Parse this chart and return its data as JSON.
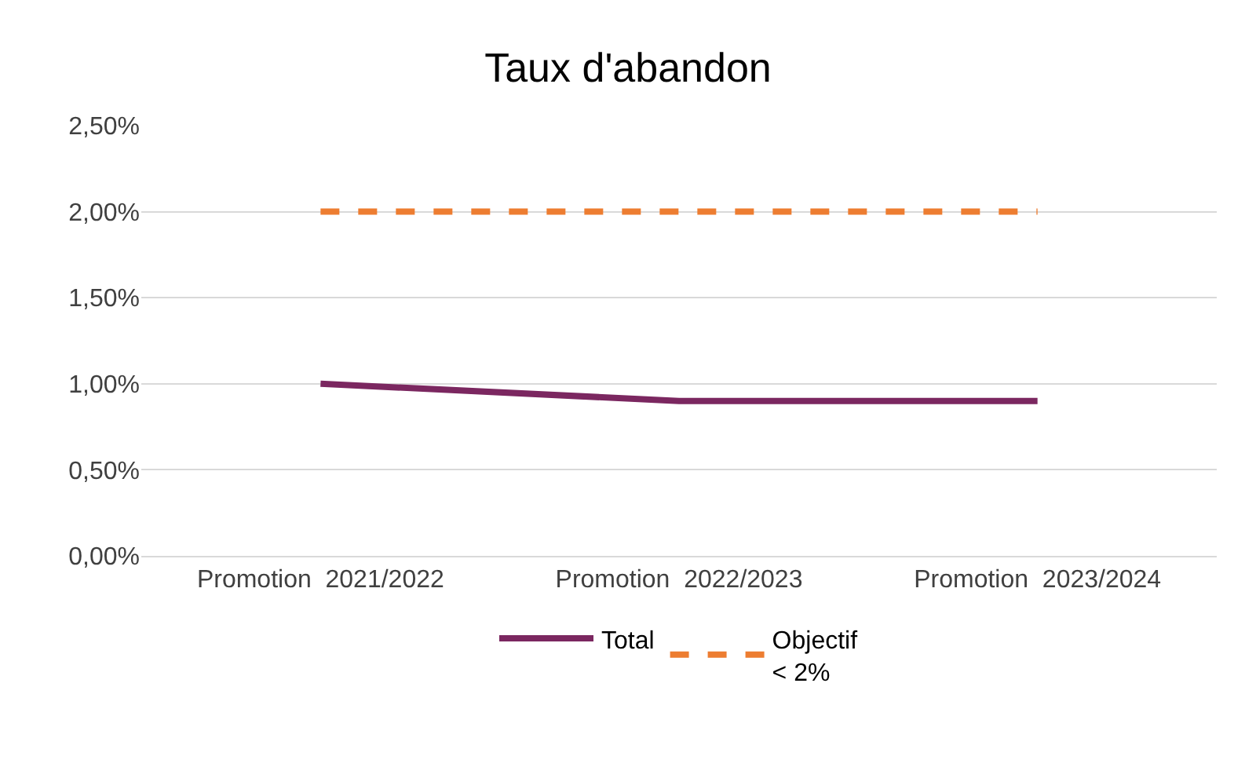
{
  "chart_data": {
    "type": "line",
    "title": "Taux d'abandon",
    "categories": [
      "Promotion  2021/2022",
      "Promotion  2022/2023",
      "Promotion  2023/2024"
    ],
    "series": [
      {
        "name": "Total",
        "color": "#7b2760",
        "values": [
          1.0,
          0.9,
          0.9
        ],
        "line_style": "solid"
      },
      {
        "name": "Objectif\n< 2%",
        "color": "#ed7d31",
        "values": [
          2.0,
          2.0,
          2.0
        ],
        "line_style": "dashed"
      }
    ],
    "ylim": [
      0,
      2.5
    ],
    "yticks": [
      {
        "value": 0,
        "label": "0,00%"
      },
      {
        "value": 0.5,
        "label": "0,50%"
      },
      {
        "value": 1.0,
        "label": "1,00%"
      },
      {
        "value": 1.5,
        "label": "1,50%"
      },
      {
        "value": 2.0,
        "label": "2,00%"
      },
      {
        "value": 2.5,
        "label": "2,50%"
      }
    ],
    "grid": "y",
    "legend": "bottom",
    "marker": "none"
  }
}
